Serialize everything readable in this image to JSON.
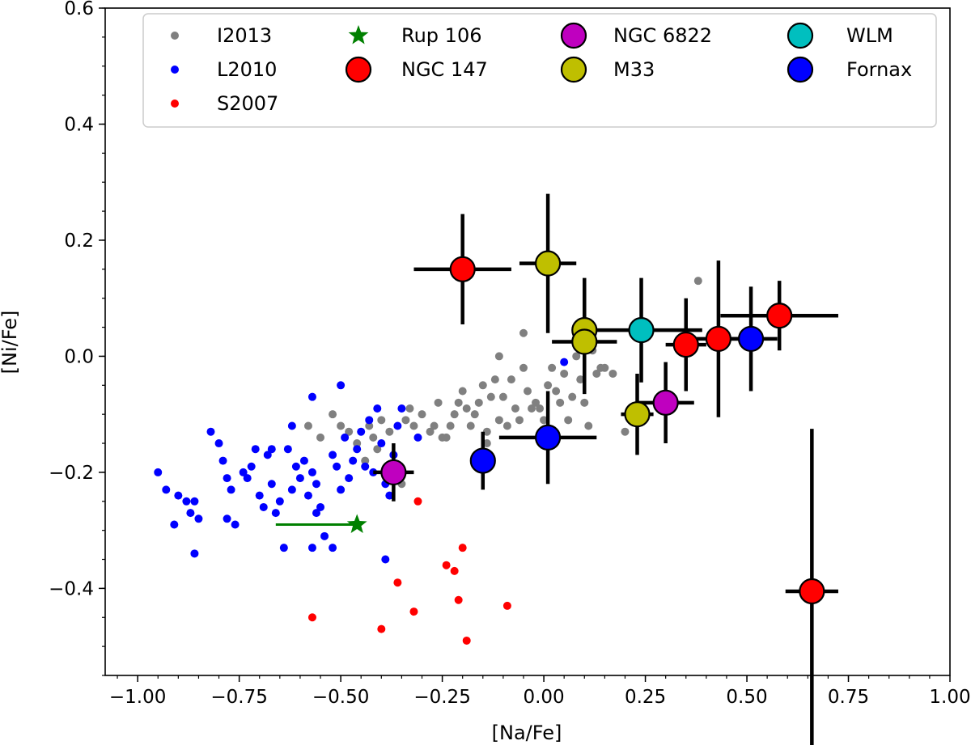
{
  "chart_data": {
    "type": "scatter",
    "title": "",
    "xlabel": "[Na/Fe]",
    "ylabel": "[Ni/Fe]",
    "xlim": [
      -1.08,
      1.0
    ],
    "ylim": [
      -0.55,
      0.6
    ],
    "grid": false,
    "legend_position": "top",
    "x_ticks": [
      {
        "value": -1.0,
        "label": "−1.00"
      },
      {
        "value": -0.75,
        "label": "−0.75"
      },
      {
        "value": -0.5,
        "label": "−0.50"
      },
      {
        "value": -0.25,
        "label": "−0.25"
      },
      {
        "value": 0.0,
        "label": "0.00"
      },
      {
        "value": 0.25,
        "label": "0.25"
      },
      {
        "value": 0.5,
        "label": "0.50"
      },
      {
        "value": 0.75,
        "label": "0.75"
      },
      {
        "value": 1.0,
        "label": "1.00"
      }
    ],
    "y_ticks": [
      {
        "value": 0.6,
        "label": "0.6"
      },
      {
        "value": 0.4,
        "label": "0.4"
      },
      {
        "value": 0.2,
        "label": "0.2"
      },
      {
        "value": 0.0,
        "label": "0.0"
      },
      {
        "value": -0.2,
        "label": "−0.2"
      },
      {
        "value": -0.4,
        "label": "−0.4"
      }
    ],
    "background_series": [
      {
        "name": "I2013",
        "color": "#808080",
        "points": [
          [
            -0.58,
            -0.12
          ],
          [
            -0.55,
            -0.14
          ],
          [
            -0.52,
            -0.1
          ],
          [
            -0.5,
            -0.12
          ],
          [
            -0.48,
            -0.13
          ],
          [
            -0.46,
            -0.15
          ],
          [
            -0.44,
            -0.18
          ],
          [
            -0.43,
            -0.12
          ],
          [
            -0.42,
            -0.14
          ],
          [
            -0.41,
            -0.16
          ],
          [
            -0.4,
            -0.11
          ],
          [
            -0.38,
            -0.13
          ],
          [
            -0.37,
            -0.17
          ],
          [
            -0.36,
            -0.2
          ],
          [
            -0.35,
            -0.22
          ],
          [
            -0.34,
            -0.11
          ],
          [
            -0.33,
            -0.09
          ],
          [
            -0.32,
            -0.12
          ],
          [
            -0.3,
            -0.1
          ],
          [
            -0.28,
            -0.13
          ],
          [
            -0.27,
            -0.12
          ],
          [
            -0.26,
            -0.08
          ],
          [
            -0.25,
            -0.14
          ],
          [
            -0.24,
            -0.14
          ],
          [
            -0.23,
            -0.12
          ],
          [
            -0.22,
            -0.1
          ],
          [
            -0.21,
            -0.08
          ],
          [
            -0.2,
            -0.06
          ],
          [
            -0.19,
            -0.09
          ],
          [
            -0.18,
            -0.12
          ],
          [
            -0.17,
            -0.1
          ],
          [
            -0.16,
            -0.08
          ],
          [
            -0.15,
            -0.05
          ],
          [
            -0.14,
            -0.13
          ],
          [
            -0.13,
            -0.07
          ],
          [
            -0.12,
            -0.04
          ],
          [
            -0.11,
            -0.11
          ],
          [
            -0.1,
            -0.07
          ],
          [
            -0.09,
            -0.12
          ],
          [
            -0.08,
            -0.04
          ],
          [
            -0.07,
            -0.09
          ],
          [
            -0.06,
            -0.11
          ],
          [
            -0.05,
            -0.02
          ],
          [
            -0.04,
            -0.06
          ],
          [
            -0.03,
            -0.09
          ],
          [
            -0.02,
            -0.08
          ],
          [
            -0.01,
            -0.09
          ],
          [
            0.0,
            -0.11
          ],
          [
            0.01,
            -0.05
          ],
          [
            0.02,
            -0.02
          ],
          [
            0.03,
            -0.06
          ],
          [
            0.04,
            -0.08
          ],
          [
            0.05,
            -0.03
          ],
          [
            0.06,
            -0.11
          ],
          [
            0.07,
            -0.07
          ],
          [
            0.08,
            0.0
          ],
          [
            0.09,
            -0.04
          ],
          [
            0.1,
            -0.08
          ],
          [
            0.11,
            -0.12
          ],
          [
            0.12,
            0.01
          ],
          [
            0.13,
            -0.03
          ],
          [
            0.14,
            -0.02
          ],
          [
            0.15,
            -0.02
          ],
          [
            0.17,
            -0.03
          ],
          [
            0.2,
            -0.13
          ],
          [
            0.24,
            -0.1
          ],
          [
            0.38,
            0.13
          ],
          [
            -0.14,
            -0.15
          ],
          [
            -0.05,
            0.04
          ],
          [
            -0.11,
            0.0
          ]
        ]
      },
      {
        "name": "L2010",
        "color": "#0000ff",
        "points": [
          [
            -0.95,
            -0.2
          ],
          [
            -0.93,
            -0.23
          ],
          [
            -0.91,
            -0.29
          ],
          [
            -0.9,
            -0.24
          ],
          [
            -0.88,
            -0.25
          ],
          [
            -0.87,
            -0.27
          ],
          [
            -0.86,
            -0.25
          ],
          [
            -0.86,
            -0.34
          ],
          [
            -0.85,
            -0.28
          ],
          [
            -0.82,
            -0.13
          ],
          [
            -0.8,
            -0.15
          ],
          [
            -0.79,
            -0.18
          ],
          [
            -0.78,
            -0.21
          ],
          [
            -0.78,
            -0.28
          ],
          [
            -0.77,
            -0.23
          ],
          [
            -0.76,
            -0.29
          ],
          [
            -0.74,
            -0.2
          ],
          [
            -0.72,
            -0.19
          ],
          [
            -0.71,
            -0.16
          ],
          [
            -0.7,
            -0.24
          ],
          [
            -0.69,
            -0.26
          ],
          [
            -0.68,
            -0.17
          ],
          [
            -0.67,
            -0.22
          ],
          [
            -0.66,
            -0.27
          ],
          [
            -0.65,
            -0.25
          ],
          [
            -0.63,
            -0.16
          ],
          [
            -0.62,
            -0.23
          ],
          [
            -0.61,
            -0.19
          ],
          [
            -0.6,
            -0.21
          ],
          [
            -0.59,
            -0.18
          ],
          [
            -0.58,
            -0.24
          ],
          [
            -0.57,
            -0.2
          ],
          [
            -0.56,
            -0.22
          ],
          [
            -0.55,
            -0.26
          ],
          [
            -0.54,
            -0.31
          ],
          [
            -0.52,
            -0.17
          ],
          [
            -0.51,
            -0.19
          ],
          [
            -0.5,
            -0.23
          ],
          [
            -0.49,
            -0.14
          ],
          [
            -0.48,
            -0.21
          ],
          [
            -0.47,
            -0.18
          ],
          [
            -0.46,
            -0.16
          ],
          [
            -0.45,
            -0.13
          ],
          [
            -0.44,
            -0.19
          ],
          [
            -0.43,
            -0.11
          ],
          [
            -0.42,
            -0.2
          ],
          [
            -0.41,
            -0.09
          ],
          [
            -0.4,
            -0.15
          ],
          [
            -0.39,
            -0.22
          ],
          [
            -0.38,
            -0.24
          ],
          [
            -0.37,
            -0.17
          ],
          [
            -0.36,
            -0.12
          ],
          [
            -0.35,
            -0.09
          ],
          [
            -0.62,
            -0.12
          ],
          [
            -0.57,
            -0.07
          ],
          [
            -0.5,
            -0.05
          ],
          [
            -0.64,
            -0.33
          ],
          [
            -0.57,
            -0.33
          ],
          [
            -0.52,
            -0.33
          ],
          [
            -0.56,
            -0.27
          ],
          [
            -0.39,
            -0.35
          ],
          [
            -0.67,
            -0.16
          ],
          [
            -0.73,
            -0.21
          ],
          [
            0.05,
            -0.01
          ],
          [
            -0.31,
            -0.14
          ]
        ]
      },
      {
        "name": "S2007",
        "color": "#ff0000",
        "points": [
          [
            -0.57,
            -0.45
          ],
          [
            -0.4,
            -0.47
          ],
          [
            -0.36,
            -0.39
          ],
          [
            -0.32,
            -0.44
          ],
          [
            -0.31,
            -0.25
          ],
          [
            -0.24,
            -0.36
          ],
          [
            -0.22,
            -0.37
          ],
          [
            -0.21,
            -0.42
          ],
          [
            -0.2,
            -0.33
          ],
          [
            -0.19,
            -0.49
          ],
          [
            -0.09,
            -0.43
          ]
        ]
      }
    ],
    "rup106": {
      "name": "Rup 106",
      "color": "#008000",
      "x": -0.46,
      "y": -0.29,
      "x_err_low": 0.2,
      "x_err_high": 0.0
    },
    "galaxy_series": [
      {
        "name": "NGC 147",
        "color": "#ff0000",
        "points": [
          {
            "x": -0.2,
            "y": 0.15,
            "xerr": 0.12,
            "yerr": 0.095
          },
          {
            "x": 0.35,
            "y": 0.02,
            "xerr": 0.05,
            "yerr": 0.08
          },
          {
            "x": 0.43,
            "y": 0.03,
            "xerr": 0.08,
            "yerr": 0.135
          },
          {
            "x": 0.58,
            "y": 0.07,
            "xerr": 0.145,
            "yerr": 0.06
          },
          {
            "x": 0.66,
            "y": -0.405,
            "xerr": 0.065,
            "yerr": 0.28
          }
        ]
      },
      {
        "name": "NGC 6822",
        "color": "#bf00bf",
        "points": [
          {
            "x": -0.37,
            "y": -0.2,
            "xerr": 0.05,
            "yerr": 0.05
          },
          {
            "x": 0.3,
            "y": -0.08,
            "xerr": 0.07,
            "yerr": 0.07
          }
        ]
      },
      {
        "name": "M33",
        "color": "#bfbf00",
        "points": [
          {
            "x": 0.01,
            "y": 0.16,
            "xerr": 0.07,
            "yerr": 0.12
          },
          {
            "x": 0.1,
            "y": 0.045,
            "xerr": 0.03,
            "yerr": 0.09
          },
          {
            "x": 0.1,
            "y": 0.025,
            "xerr": 0.08,
            "yerr": 0.09
          },
          {
            "x": 0.23,
            "y": -0.1,
            "xerr": 0.04,
            "yerr": 0.07
          }
        ]
      },
      {
        "name": "WLM",
        "color": "#00bfbf",
        "points": [
          {
            "x": 0.24,
            "y": 0.045,
            "xerr": 0.15,
            "yerr": 0.09
          }
        ]
      },
      {
        "name": "Fornax",
        "color": "#0000ff",
        "points": [
          {
            "x": -0.15,
            "y": -0.18,
            "xerr": 0.03,
            "yerr": 0.05
          },
          {
            "x": 0.01,
            "y": -0.14,
            "xerr": 0.12,
            "yerr": 0.08
          },
          {
            "x": 0.51,
            "y": 0.03,
            "xerr": 0.065,
            "yerr": 0.09
          }
        ]
      }
    ],
    "legend": [
      {
        "label": "I2013",
        "marker": "small-dot",
        "color": "#808080"
      },
      {
        "label": "L2010",
        "marker": "small-dot",
        "color": "#0000ff"
      },
      {
        "label": "S2007",
        "marker": "small-dot",
        "color": "#ff0000"
      },
      {
        "label": "Rup 106",
        "marker": "star",
        "color": "#008000"
      },
      {
        "label": "NGC 147",
        "marker": "big-circle",
        "color": "#ff0000"
      },
      {
        "label": "NGC 6822",
        "marker": "big-circle",
        "color": "#bf00bf"
      },
      {
        "label": "M33",
        "marker": "big-circle",
        "color": "#bfbf00"
      },
      {
        "label": "WLM",
        "marker": "big-circle",
        "color": "#00bfbf"
      },
      {
        "label": "Fornax",
        "marker": "big-circle",
        "color": "#0000ff"
      }
    ]
  }
}
